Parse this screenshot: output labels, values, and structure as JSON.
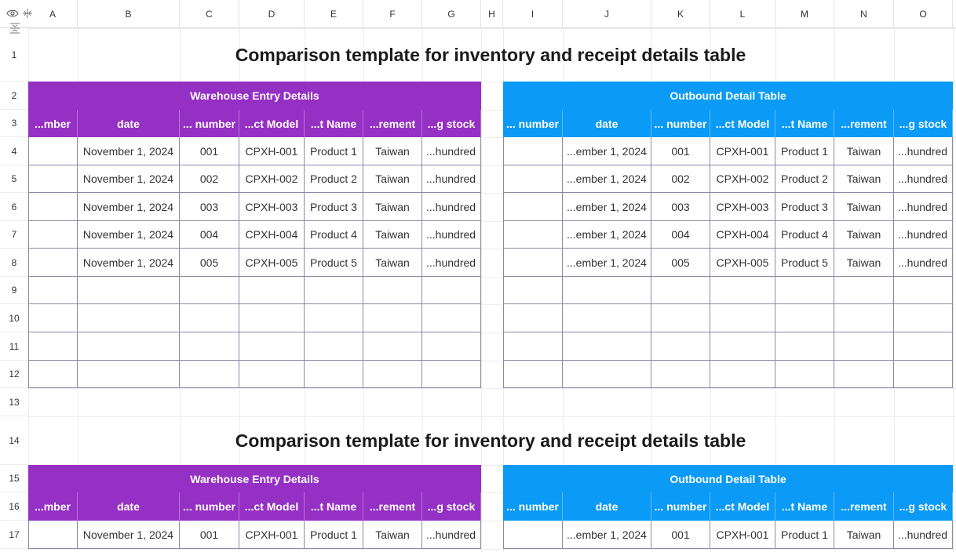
{
  "columns": [
    "A",
    "B",
    "C",
    "D",
    "E",
    "F",
    "G",
    "H",
    "I",
    "J",
    "K",
    "L",
    "M",
    "N",
    "O"
  ],
  "rows": [
    "1",
    "2",
    "3",
    "4",
    "5",
    "6",
    "7",
    "8",
    "9",
    "10",
    "11",
    "12",
    "13",
    "14",
    "15",
    "16",
    "17"
  ],
  "title": "Comparison template for inventory and receipt details table",
  "left_banner": "Warehouse Entry Details",
  "right_banner": "Outbound Detail Table",
  "left_headers": [
    "...mber",
    "date",
    "... number",
    "...ct Model",
    "...t Name",
    "...rement",
    "...g stock"
  ],
  "right_headers": [
    "... number",
    "date",
    "... number",
    "...ct Model",
    "...t Name",
    "...rement",
    "...g stock"
  ],
  "left_rows": [
    [
      "",
      "November 1, 2024",
      "001",
      "CPXH-001",
      "Product 1",
      "Taiwan",
      "...hundred"
    ],
    [
      "",
      "November 1, 2024",
      "002",
      "CPXH-002",
      "Product 2",
      "Taiwan",
      "...hundred"
    ],
    [
      "",
      "November 1, 2024",
      "003",
      "CPXH-003",
      "Product 3",
      "Taiwan",
      "...hundred"
    ],
    [
      "",
      "November 1, 2024",
      "004",
      "CPXH-004",
      "Product 4",
      "Taiwan",
      "...hundred"
    ],
    [
      "",
      "November 1, 2024",
      "005",
      "CPXH-005",
      "Product 5",
      "Taiwan",
      "...hundred"
    ]
  ],
  "right_rows": [
    [
      "",
      "...ember 1, 2024",
      "001",
      "CPXH-001",
      "Product 1",
      "Taiwan",
      "...hundred"
    ],
    [
      "",
      "...ember 1, 2024",
      "002",
      "CPXH-002",
      "Product 2",
      "Taiwan",
      "...hundred"
    ],
    [
      "",
      "...ember 1, 2024",
      "003",
      "CPXH-003",
      "Product 3",
      "Taiwan",
      "...hundred"
    ],
    [
      "",
      "...ember 1, 2024",
      "004",
      "CPXH-004",
      "Product 4",
      "Taiwan",
      "...hundred"
    ],
    [
      "",
      "...ember 1, 2024",
      "005",
      "CPXH-005",
      "Product 5",
      "Taiwan",
      "...hundred"
    ]
  ],
  "second_block_left_row": [
    "",
    "November 1, 2024",
    "001",
    "CPXH-001",
    "Product 1",
    "Taiwan",
    "...hundred"
  ],
  "second_block_right_row": [
    "",
    "...ember 1, 2024",
    "001",
    "CPXH-001",
    "Product 1",
    "Taiwan",
    "...hundred"
  ],
  "colors": {
    "purple": "#9530c4",
    "blue": "#0b9af5",
    "border": "#8a8aa6"
  },
  "icons": {
    "corner": [
      "eye-icon",
      "freeze-columns-icon",
      "freeze-rows-icon"
    ]
  }
}
